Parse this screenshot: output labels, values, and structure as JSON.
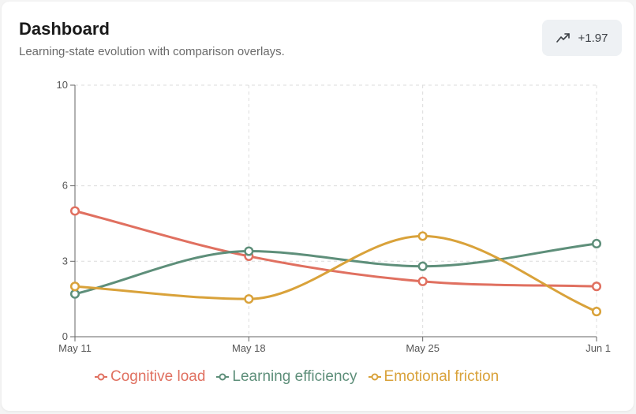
{
  "header": {
    "title": "Dashboard",
    "subtitle": "Learning-state evolution with comparison overlays.",
    "trend_icon": "trending-up-icon",
    "trend_value": "+1.97"
  },
  "chart_data": {
    "type": "line",
    "curve": "smooth",
    "categories": [
      "May 11",
      "May 18",
      "May 25",
      "Jun 1"
    ],
    "series": [
      {
        "name": "Cognitive load",
        "color": "#e07060",
        "values": [
          5.0,
          3.2,
          2.2,
          2.0
        ]
      },
      {
        "name": "Learning efficiency",
        "color": "#5e8f7a",
        "values": [
          1.7,
          3.4,
          2.8,
          3.7
        ]
      },
      {
        "name": "Emotional friction",
        "color": "#d9a23a",
        "values": [
          2.0,
          1.5,
          4.0,
          1.0
        ]
      }
    ],
    "yticks": [
      "0",
      "3",
      "6",
      "10"
    ],
    "ylim": [
      0,
      10
    ],
    "grid": true,
    "legend_position": "bottom"
  }
}
